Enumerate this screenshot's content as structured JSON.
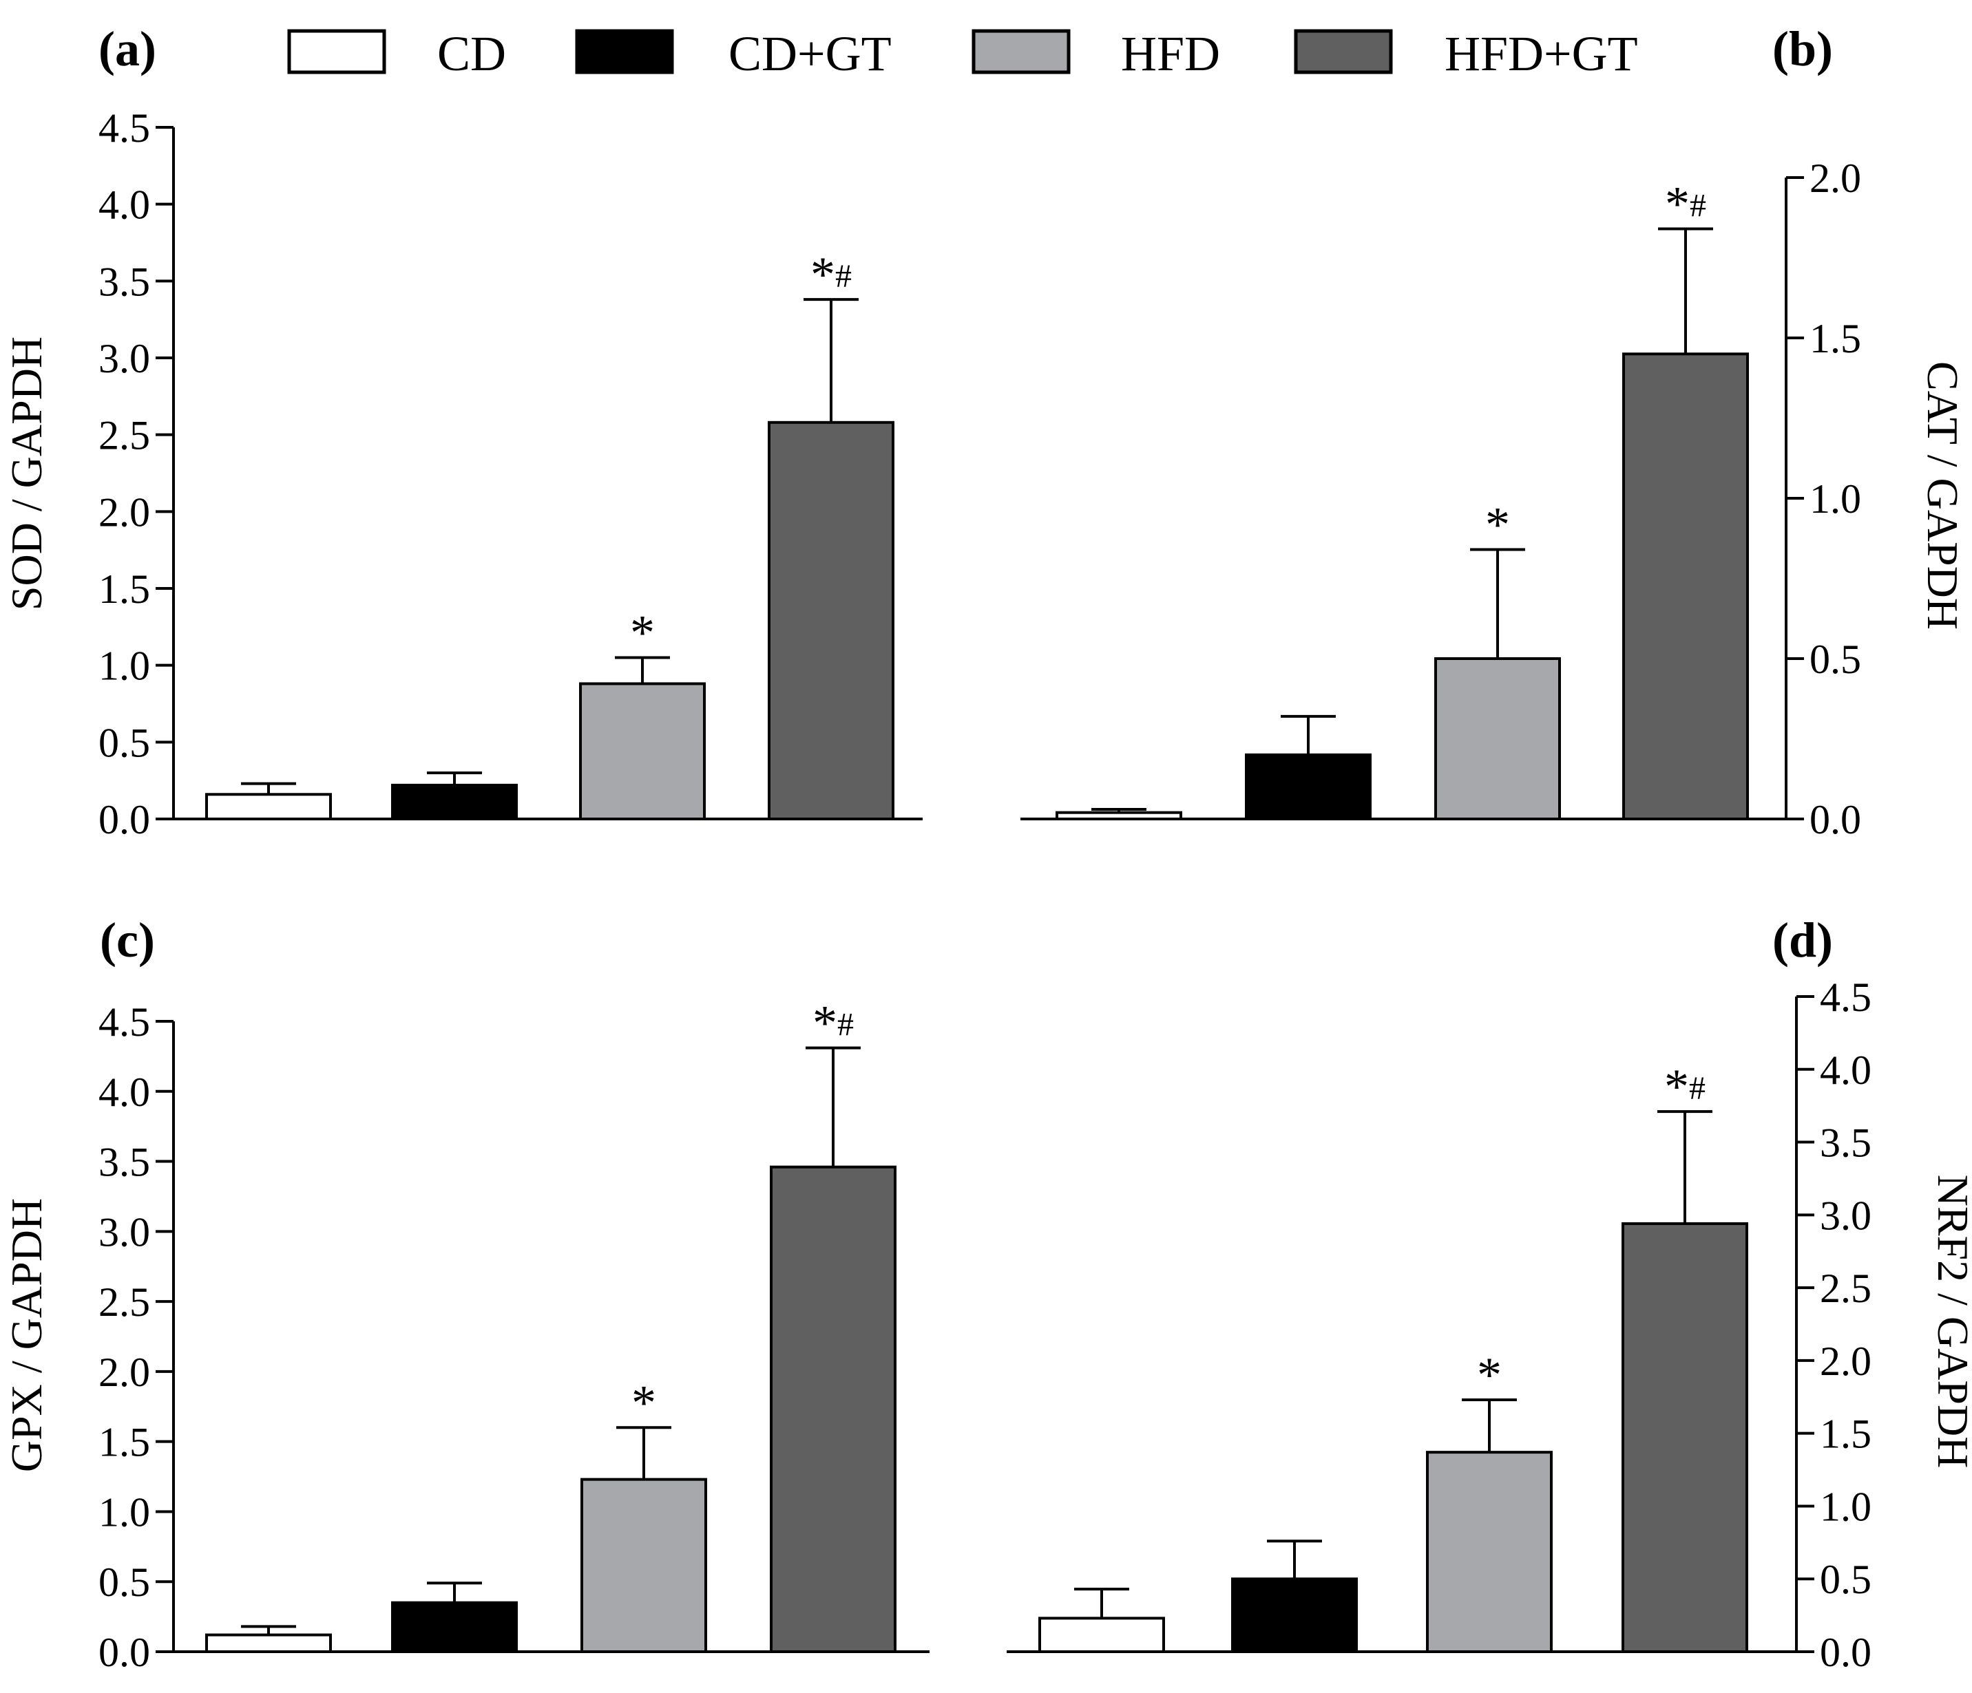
{
  "legend": [
    {
      "label": "CD",
      "color": "#ffffff"
    },
    {
      "label": "CD+GT",
      "color": "#000000"
    },
    {
      "label": "HFD",
      "color": "#a7a8ab"
    },
    {
      "label": "HFD+GT",
      "color": "#606060"
    }
  ],
  "chart_data": [
    {
      "panel": "(a)",
      "type": "bar",
      "categories": [
        "CD",
        "CD+GT",
        "HFD",
        "HFD+GT"
      ],
      "values": [
        0.16,
        0.22,
        0.88,
        2.58
      ],
      "errors": [
        0.07,
        0.08,
        0.17,
        0.8
      ],
      "significance": [
        "",
        "",
        "*",
        "*#"
      ],
      "ylabel": "SOD / GAPDH",
      "ylim": [
        0,
        4.5
      ],
      "yticks": [
        "0.0",
        "0.5",
        "1.0",
        "1.5",
        "2.0",
        "2.5",
        "3.0",
        "3.5",
        "4.0",
        "4.5"
      ],
      "axis_side": "left"
    },
    {
      "panel": "(b)",
      "type": "bar",
      "categories": [
        "CD",
        "CD+GT",
        "HFD",
        "HFD+GT"
      ],
      "values": [
        0.02,
        0.2,
        0.5,
        1.45
      ],
      "errors": [
        0.01,
        0.12,
        0.34,
        0.39
      ],
      "significance": [
        "",
        "",
        "*",
        "*#"
      ],
      "ylabel": "CAT / GAPDH",
      "ylim": [
        0,
        2.0
      ],
      "yticks": [
        "0.0",
        "0.5",
        "1.0",
        "1.5",
        "2.0"
      ],
      "axis_side": "right"
    },
    {
      "panel": "(c)",
      "type": "bar",
      "categories": [
        "CD",
        "CD+GT",
        "HFD",
        "HFD+GT"
      ],
      "values": [
        0.12,
        0.35,
        1.23,
        3.46
      ],
      "errors": [
        0.06,
        0.14,
        0.37,
        0.85
      ],
      "significance": [
        "",
        "",
        "*",
        "*#"
      ],
      "ylabel": "GPX / GAPDH",
      "ylim": [
        0,
        4.5
      ],
      "yticks": [
        "0.0",
        "0.5",
        "1.0",
        "1.5",
        "2.0",
        "2.5",
        "3.0",
        "3.5",
        "4.0",
        "4.5"
      ],
      "axis_side": "left"
    },
    {
      "panel": "(d)",
      "type": "bar",
      "categories": [
        "CD",
        "CD+GT",
        "HFD",
        "HFD+GT"
      ],
      "values": [
        0.23,
        0.5,
        1.37,
        2.94
      ],
      "errors": [
        0.2,
        0.26,
        0.36,
        0.77
      ],
      "significance": [
        "",
        "",
        "*",
        "*#"
      ],
      "ylabel": "NRF2 / GAPDH",
      "ylim": [
        0,
        4.5
      ],
      "yticks": [
        "0.0",
        "0.5",
        "1.0",
        "1.5",
        "2.0",
        "2.5",
        "3.0",
        "3.5",
        "4.0",
        "4.5"
      ],
      "axis_side": "right"
    }
  ]
}
